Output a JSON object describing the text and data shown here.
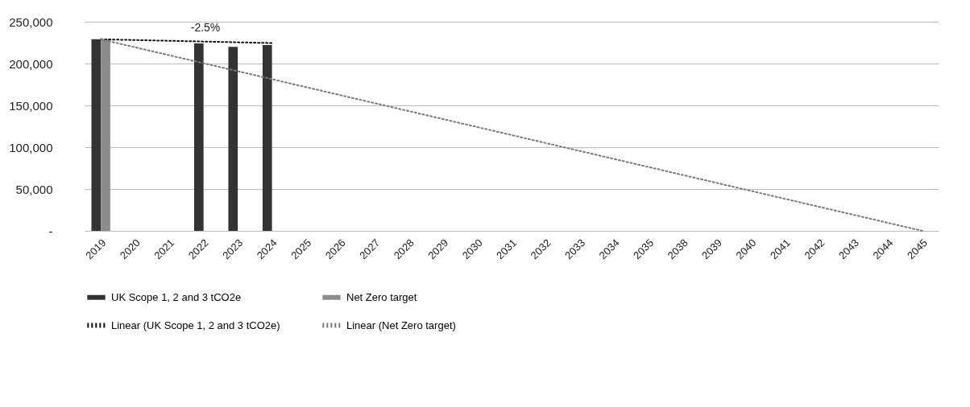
{
  "chart_data": {
    "type": "bar",
    "categories": [
      "2019",
      "2020",
      "2021",
      "2022",
      "2023",
      "2024",
      "2025",
      "2026",
      "2027",
      "2028",
      "2029",
      "2030",
      "2031",
      "2032",
      "2033",
      "2034",
      "2035",
      "2038",
      "2039",
      "2040",
      "2041",
      "2042",
      "2043",
      "2044",
      "2045"
    ],
    "series": [
      {
        "name": "UK Scope 1, 2 and 3 tCO2e",
        "color": "#333333",
        "values": [
          229000,
          null,
          null,
          224000,
          220000,
          222000,
          null,
          null,
          null,
          null,
          null,
          null,
          null,
          null,
          null,
          null,
          null,
          null,
          null,
          null,
          null,
          null,
          null,
          null,
          null
        ]
      },
      {
        "name": "Net Zero target",
        "color": "#8c8c8c",
        "values": [
          229000,
          null,
          null,
          null,
          null,
          null,
          null,
          null,
          null,
          null,
          null,
          null,
          null,
          null,
          null,
          null,
          null,
          null,
          null,
          null,
          null,
          null,
          null,
          null,
          null
        ]
      },
      {
        "name": "Linear (UK Scope 1, 2 and 3 tCO2e)",
        "type": "line",
        "line_style": "dotted",
        "color": "#111111",
        "values": [
          229000,
          null,
          null,
          null,
          null,
          224500,
          null,
          null,
          null,
          null,
          null,
          null,
          null,
          null,
          null,
          null,
          null,
          null,
          null,
          null,
          null,
          null,
          null,
          null,
          null
        ]
      },
      {
        "name": "Linear (Net Zero target)",
        "type": "line",
        "line_style": "dotted",
        "color": "#7a7a7a",
        "values": [
          229000,
          null,
          null,
          null,
          null,
          null,
          null,
          null,
          null,
          null,
          null,
          null,
          null,
          null,
          null,
          null,
          null,
          null,
          null,
          null,
          null,
          null,
          null,
          null,
          0
        ]
      }
    ],
    "ylim": [
      0,
      250000
    ],
    "yticks": [
      {
        "value": 0,
        "label": "-"
      },
      {
        "value": 50000,
        "label": "50,000"
      },
      {
        "value": 100000,
        "label": "100,000"
      },
      {
        "value": 150000,
        "label": "150,000"
      },
      {
        "value": 200000,
        "label": "200,000"
      },
      {
        "value": 250000,
        "label": "250,000"
      }
    ],
    "grid": "y",
    "legend": "bottom",
    "annotations": [
      "-2.5%"
    ]
  }
}
